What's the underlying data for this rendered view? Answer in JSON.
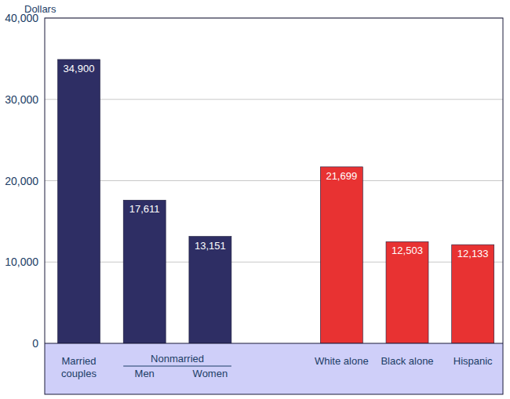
{
  "chart_data": {
    "type": "bar",
    "y_label": "Dollars",
    "categories": [
      "Married couples",
      "Men",
      "Women",
      "White alone",
      "Black alone",
      "Hispanic"
    ],
    "values": [
      34900,
      17611,
      13151,
      21699,
      12503,
      12133
    ],
    "value_labels": [
      "34,900",
      "17,611",
      "13,151",
      "21,699",
      "12,503",
      "12,133"
    ],
    "colors": [
      "#2e2e64",
      "#2e2e64",
      "#2e2e64",
      "#e83232",
      "#e83232",
      "#e83232"
    ],
    "ylim": [
      0,
      40000
    ],
    "yticks": [
      0,
      {
        "value": 10000,
        "label": "10,000"
      },
      {
        "value": 20000,
        "label": "20,000"
      },
      {
        "value": 30000,
        "label": "30,000"
      },
      {
        "value": 40000,
        "label": "40,000"
      }
    ],
    "grid": true,
    "data_labels": true,
    "annotations": [
      {
        "text": "Nonmarried",
        "categories": [
          "Men",
          "Women"
        ]
      }
    ]
  }
}
